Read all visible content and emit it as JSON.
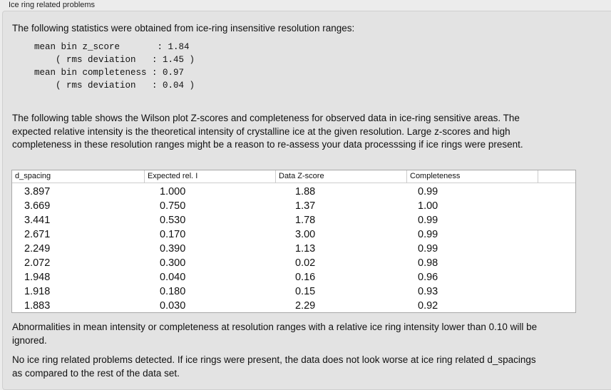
{
  "title": "Ice ring related problems",
  "intro": "The following statistics were obtained from ice-ring insensitive resolution ranges:",
  "stats": "mean bin z_score       : 1.84\n    ( rms deviation   : 1.45 )\nmean bin completeness : 0.97\n    ( rms deviation   : 0.04 )",
  "table_intro": "The following table shows the Wilson plot Z-scores and completeness for observed data in ice-ring sensitive areas. The expected relative intensity is the theoretical intensity of crystalline ice at the given resolution. Large z-scores and high completeness in these resolution ranges might be a reason to re-assess your data processsing if ice rings were present.",
  "table": {
    "headers": [
      "d_spacing",
      "Expected rel. I",
      "Data Z-score",
      "Completeness"
    ],
    "rows": [
      [
        "3.897",
        "1.000",
        "1.88",
        "0.99"
      ],
      [
        "3.669",
        "0.750",
        "1.37",
        "1.00"
      ],
      [
        "3.441",
        "0.530",
        "1.78",
        "0.99"
      ],
      [
        "2.671",
        "0.170",
        "3.00",
        "0.99"
      ],
      [
        "2.249",
        "0.390",
        "1.13",
        "0.99"
      ],
      [
        "2.072",
        "0.300",
        "0.02",
        "0.98"
      ],
      [
        "1.948",
        "0.040",
        "0.16",
        "0.96"
      ],
      [
        "1.918",
        "0.180",
        "0.15",
        "0.93"
      ],
      [
        "1.883",
        "0.030",
        "2.29",
        "0.92"
      ]
    ]
  },
  "note1": "Abnormalities in mean intensity or completeness at resolution ranges with a relative ice ring intensity lower than 0.10 will be ignored.",
  "note2": "No ice ring related problems detected. If ice rings were present, the data does not look worse at ice ring related d_spacings as compared to the rest of the data set."
}
